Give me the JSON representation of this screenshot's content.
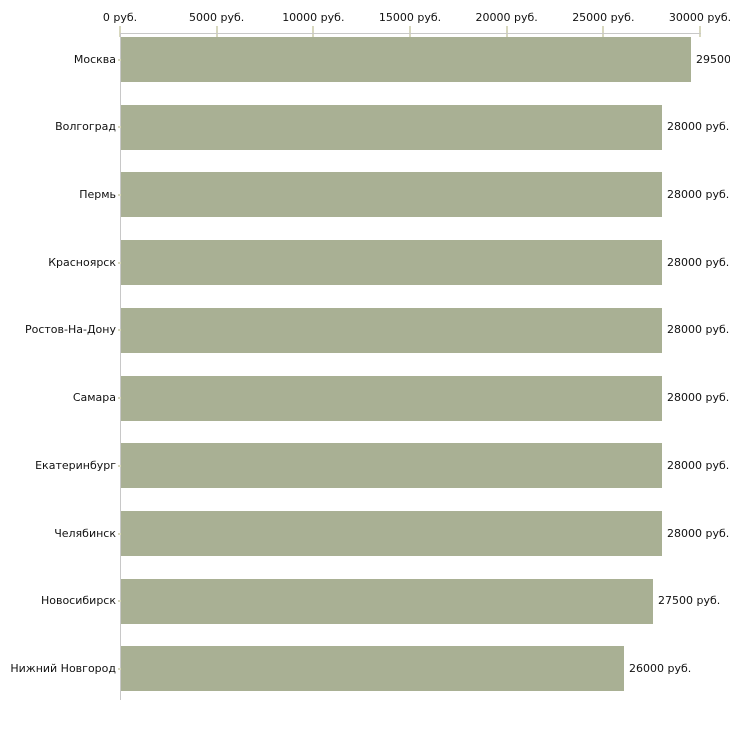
{
  "chart_data": {
    "type": "bar",
    "orientation": "horizontal",
    "title": "",
    "xlabel": "",
    "ylabel": "",
    "xlim": [
      0,
      30000
    ],
    "grid": false,
    "legend": null,
    "x_tick_values": [
      0,
      5000,
      10000,
      15000,
      20000,
      25000,
      30000
    ],
    "x_tick_labels": [
      "0 руб.",
      "5000 руб.",
      "10000 руб.",
      "15000 руб.",
      "20000 руб.",
      "25000 руб.",
      "30000 руб."
    ],
    "categories": [
      "Москва",
      "Волгоград",
      "Пермь",
      "Красноярск",
      "Ростов-На-Дону",
      "Самара",
      "Екатеринбург",
      "Челябинск",
      "Новосибирск",
      "Нижний Новгород"
    ],
    "values": [
      29500,
      28000,
      28000,
      28000,
      28000,
      28000,
      28000,
      28000,
      27500,
      26000
    ],
    "bar_value_labels": [
      "29500",
      "28000 руб.",
      "28000 руб.",
      "28000 руб.",
      "28000 руб.",
      "28000 руб.",
      "28000 руб.",
      "28000 руб.",
      "27500 руб.",
      "26000 руб."
    ],
    "colors": {
      "bar": "#a9b094",
      "axis_line": "#c8c8c8",
      "tick_mark": "#d8d8bf",
      "text": "#111111",
      "background": "#ffffff"
    }
  }
}
